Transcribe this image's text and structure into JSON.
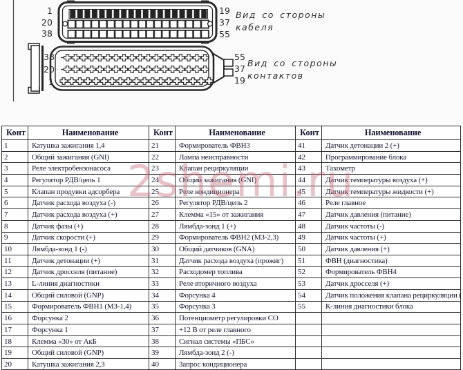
{
  "connectors": {
    "cable_view": {
      "left_pins": [
        "1",
        "20",
        "38"
      ],
      "right_pins": [
        "19",
        "37",
        "55"
      ],
      "caption_line1": "Вид со стороны",
      "caption_line2": "кабеля"
    },
    "contact_view": {
      "left_pins": [
        "38",
        "20",
        "1"
      ],
      "right_pins": [
        "55",
        "37",
        "19"
      ],
      "caption_line1": "Вид со стороны",
      "caption_line2": "контактов"
    }
  },
  "watermark": {
    "text": "2shemi.ru",
    "color": "#c96f7c"
  },
  "table": {
    "header": {
      "pin": "Конт",
      "name": "Наименование"
    },
    "groups": [
      {
        "rows": [
          [
            "1",
            "Катушка зажигания 1,4"
          ],
          [
            "2",
            "Общий зажигания (GNI)"
          ],
          [
            "3",
            "Реле электробензонасоса"
          ],
          [
            "4",
            "Регулятор РДВ/цепь 1"
          ],
          [
            "5",
            "Клапан продувки адсорбера"
          ],
          [
            "6",
            "Датчик расхода воздуха (-)"
          ],
          [
            "7",
            "Датчик расхода воздуха (+)"
          ],
          [
            "8",
            "Датчик фазы (+)"
          ],
          [
            "9",
            "Датчик скорости (+)"
          ],
          [
            "10",
            "Лямбда-зонд 1 (-)"
          ],
          [
            "11",
            "Датчик детонации (+)"
          ],
          [
            "12",
            "Датчик дросселя (питание)"
          ],
          [
            "13",
            "L-линия диагностики"
          ],
          [
            "14",
            "Общий силовой (GNP)"
          ],
          [
            "15",
            "Формирователь ФВН1 (МЗ-1,4)"
          ],
          [
            "16",
            "Форсунка 2"
          ],
          [
            "17",
            "Форсунка 1"
          ],
          [
            "18",
            "Клемма «30» от АкБ"
          ],
          [
            "19",
            "Общий силовой (GNP)"
          ],
          [
            "20",
            "Катушка зажигания 2,3"
          ]
        ]
      },
      {
        "rows": [
          [
            "21",
            "Формирователь ФВН3"
          ],
          [
            "22",
            "Лампа неисправности"
          ],
          [
            "23",
            "Клапан рециркуляции"
          ],
          [
            "24",
            "Общий зажигания (GNI)"
          ],
          [
            "25",
            "Реле кондиционера"
          ],
          [
            "26",
            "Регулятор РДВ/цепь 2"
          ],
          [
            "27",
            "Клемма «15» от зажигания"
          ],
          [
            "28",
            "Лямбда-зонд 1 (+)"
          ],
          [
            "29",
            "Формирователь ФВН2 (МЗ-2,3)"
          ],
          [
            "30",
            "Общий датчиков (GNA)"
          ],
          [
            "31",
            "Датчик расхода воздуха (прожиг)"
          ],
          [
            "32",
            "Расходомер топлива"
          ],
          [
            "33",
            "Реле вторичного воздуха"
          ],
          [
            "34",
            "Форсунка 4"
          ],
          [
            "35",
            "Форсунка 3"
          ],
          [
            "36",
            "Потенциометр регулировки СО"
          ],
          [
            "37",
            "+12 В от реле главного"
          ],
          [
            "38",
            "Сигнал системы «ПБС»"
          ],
          [
            "39",
            "Лямбда-зонд 2 (-)"
          ],
          [
            "40",
            "Запрос кондиционера"
          ]
        ]
      },
      {
        "rows": [
          [
            "41",
            "Датчик детонации 2 (+)"
          ],
          [
            "42",
            "Программирование блока"
          ],
          [
            "43",
            "Тахометр"
          ],
          [
            "44",
            "Датчик температуры воздуха (+)"
          ],
          [
            "45",
            "Датчик температуры жидкости (+)"
          ],
          [
            "46",
            "Реле главное"
          ],
          [
            "47",
            "Датчик давления (питание)"
          ],
          [
            "48",
            "Датчик частоты (-)"
          ],
          [
            "49",
            "Датчик частоты (+)"
          ],
          [
            "50",
            "Датчик давления (+)"
          ],
          [
            "51",
            "ФВН (диагностика)"
          ],
          [
            "52",
            "Формирователь ФВН4"
          ],
          [
            "53",
            "Датчик дросселя (+)"
          ],
          [
            "54",
            "Датчик положения клапана рециркуляции (+)"
          ],
          [
            "55",
            "К-линия диагностики блока"
          ],
          [
            "",
            ""
          ],
          [
            "",
            ""
          ],
          [
            "",
            ""
          ],
          [
            "",
            ""
          ],
          [
            "",
            ""
          ]
        ]
      }
    ]
  }
}
